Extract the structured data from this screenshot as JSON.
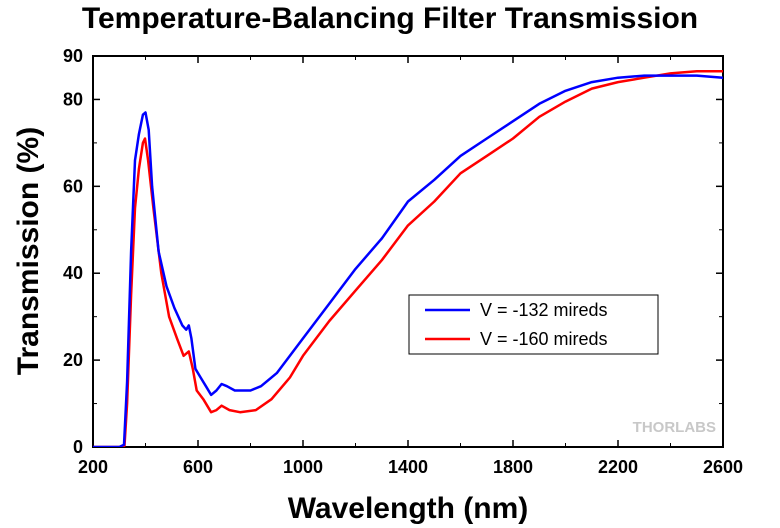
{
  "chart_data": {
    "type": "line",
    "title": "Temperature-Balancing Filter Transmission",
    "xlabel": "Wavelength (nm)",
    "ylabel": "Transmission (%)",
    "xlim": [
      200,
      2600
    ],
    "ylim": [
      0,
      90
    ],
    "xticks": [
      200,
      600,
      1000,
      1400,
      1800,
      2200,
      2600
    ],
    "yticks": [
      0,
      20,
      40,
      60,
      80,
      90
    ],
    "grid": false,
    "legend_position": "center-right",
    "series": [
      {
        "name": "V = -132 mireds",
        "color": "#0000ff",
        "points": [
          [
            200,
            0
          ],
          [
            300,
            0
          ],
          [
            318,
            0.5
          ],
          [
            330,
            15
          ],
          [
            345,
            45
          ],
          [
            360,
            66
          ],
          [
            375,
            72
          ],
          [
            390,
            76.5
          ],
          [
            400,
            77
          ],
          [
            412,
            73
          ],
          [
            425,
            60
          ],
          [
            450,
            45
          ],
          [
            480,
            37
          ],
          [
            510,
            32
          ],
          [
            540,
            28
          ],
          [
            555,
            27
          ],
          [
            565,
            28
          ],
          [
            575,
            25
          ],
          [
            590,
            18
          ],
          [
            610,
            16
          ],
          [
            630,
            14
          ],
          [
            650,
            12
          ],
          [
            670,
            13
          ],
          [
            690,
            14.5
          ],
          [
            710,
            14
          ],
          [
            740,
            13
          ],
          [
            800,
            13
          ],
          [
            840,
            14
          ],
          [
            900,
            17
          ],
          [
            1000,
            25
          ],
          [
            1100,
            33
          ],
          [
            1200,
            41
          ],
          [
            1300,
            48
          ],
          [
            1400,
            56.5
          ],
          [
            1500,
            61.5
          ],
          [
            1600,
            67
          ],
          [
            1700,
            71
          ],
          [
            1800,
            75
          ],
          [
            1900,
            79
          ],
          [
            2000,
            82
          ],
          [
            2100,
            84
          ],
          [
            2200,
            85
          ],
          [
            2300,
            85.5
          ],
          [
            2400,
            85.5
          ],
          [
            2500,
            85.5
          ],
          [
            2600,
            85
          ]
        ]
      },
      {
        "name": "V = -160 mireds",
        "color": "#ff0000",
        "points": [
          [
            200,
            0
          ],
          [
            310,
            0
          ],
          [
            320,
            0.3
          ],
          [
            330,
            10
          ],
          [
            345,
            35
          ],
          [
            360,
            55
          ],
          [
            375,
            64
          ],
          [
            390,
            70
          ],
          [
            398,
            71
          ],
          [
            410,
            66
          ],
          [
            430,
            55
          ],
          [
            460,
            40
          ],
          [
            490,
            30
          ],
          [
            520,
            25
          ],
          [
            545,
            21
          ],
          [
            565,
            22
          ],
          [
            580,
            18
          ],
          [
            595,
            13
          ],
          [
            620,
            11
          ],
          [
            650,
            8
          ],
          [
            670,
            8.5
          ],
          [
            690,
            9.5
          ],
          [
            720,
            8.5
          ],
          [
            760,
            8
          ],
          [
            820,
            8.5
          ],
          [
            880,
            11
          ],
          [
            950,
            16
          ],
          [
            1000,
            21
          ],
          [
            1100,
            29
          ],
          [
            1200,
            36
          ],
          [
            1300,
            43
          ],
          [
            1400,
            51
          ],
          [
            1500,
            56.5
          ],
          [
            1600,
            63
          ],
          [
            1700,
            67
          ],
          [
            1800,
            71
          ],
          [
            1900,
            76
          ],
          [
            2000,
            79.5
          ],
          [
            2100,
            82.5
          ],
          [
            2200,
            84
          ],
          [
            2300,
            85
          ],
          [
            2400,
            86
          ],
          [
            2500,
            86.5
          ],
          [
            2600,
            86.5
          ]
        ]
      }
    ],
    "brand": "THORLABS"
  }
}
